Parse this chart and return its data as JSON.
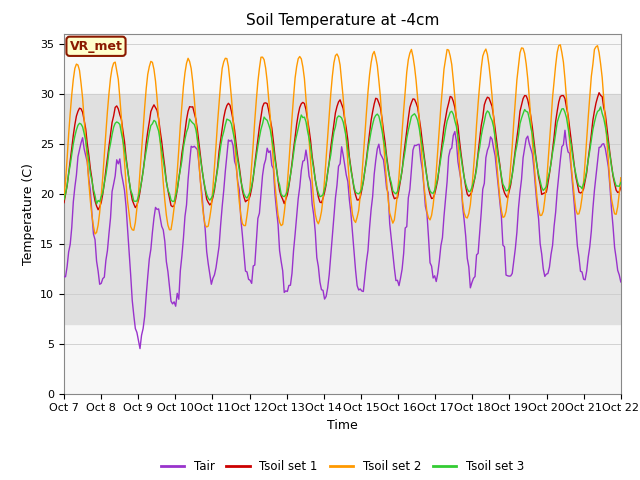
{
  "title": "Soil Temperature at -4cm",
  "xlabel": "Time",
  "ylabel": "Temperature (C)",
  "ylim": [
    0,
    36
  ],
  "yticks": [
    0,
    5,
    10,
    15,
    20,
    25,
    30,
    35
  ],
  "xticklabels": [
    "Oct 7",
    "Oct 8",
    "Oct 9",
    "Oct 10",
    "Oct 11",
    "Oct 12",
    "Oct 13",
    "Oct 14",
    "Oct 15",
    "Oct 16",
    "Oct 17",
    "Oct 18",
    "Oct 19",
    "Oct 20",
    "Oct 21",
    "Oct 22"
  ],
  "colors": {
    "Tair": "#9933cc",
    "Tsoil1": "#cc0000",
    "Tsoil2": "#ff9900",
    "Tsoil3": "#33cc33"
  },
  "legend_labels": [
    "Tair",
    "Tsoil set 1",
    "Tsoil set 2",
    "Tsoil set 3"
  ],
  "annotation_text": "VR_met",
  "annotation_color": "#8B1A00",
  "bg_band_low": 7,
  "bg_band_high": 30,
  "bg_color": "#e0e0e0",
  "title_fontsize": 11,
  "axis_fontsize": 9,
  "tick_fontsize": 8
}
